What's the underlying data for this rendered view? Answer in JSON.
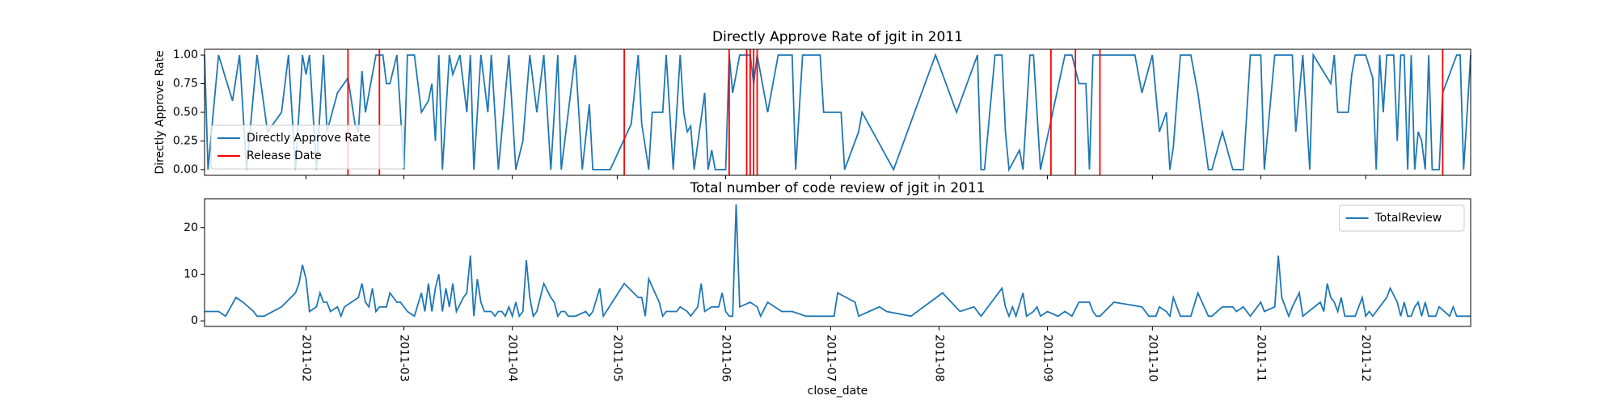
{
  "chart_data": [
    {
      "type": "line",
      "title": "Directly Approve Rate of jgit in 2011",
      "ylabel": "Directly Approve Rate",
      "x": [
        2,
        3,
        6,
        10,
        12,
        14,
        17,
        20,
        24,
        26,
        28,
        30,
        31,
        32,
        34,
        36,
        37,
        40,
        43,
        45,
        46,
        47,
        48,
        51,
        53,
        54,
        55,
        57,
        59,
        60,
        62,
        64,
        66,
        67,
        68,
        69,
        70,
        72,
        73,
        75,
        77,
        78,
        79,
        81,
        83,
        84,
        86,
        89,
        91,
        93,
        95,
        97,
        99,
        101,
        103,
        104,
        107,
        108,
        110,
        112,
        113,
        118,
        124,
        126,
        127,
        129,
        130,
        133,
        134,
        136,
        138,
        139,
        140,
        141,
        142,
        145,
        146,
        147,
        148,
        151,
        152,
        153,
        155,
        158,
        159,
        160,
        163,
        166,
        170,
        171,
        173,
        178,
        179,
        184,
        185,
        189,
        190,
        199,
        211,
        217,
        223,
        224,
        225,
        228,
        230,
        231,
        232,
        235,
        236,
        238,
        239,
        241,
        248,
        250,
        252,
        254,
        255,
        256,
        261,
        268,
        270,
        273,
        275,
        277,
        278,
        279,
        281,
        284,
        286,
        289,
        290,
        293,
        296,
        299,
        301,
        304,
        305,
        307,
        308,
        313,
        314,
        316,
        318,
        319,
        324,
        325,
        326,
        327,
        329,
        330,
        331,
        334,
        336,
        337,
        338,
        339,
        340,
        342,
        343,
        344,
        345,
        346,
        347,
        348,
        349,
        350,
        351,
        352,
        353,
        355,
        356,
        360,
        361,
        362,
        364
      ],
      "series": [
        {
          "name": "Directly Approve Rate",
          "color": "#1f77b4",
          "values": [
            1,
            0,
            1,
            0.6,
            1,
            0,
            1,
            0.33,
            0.5,
            1,
            0,
            1,
            0.83,
            1,
            0,
            1,
            0.33,
            0.67,
            0.8,
            0.4,
            0.33,
            0.86,
            0.5,
            1,
            1,
            0.75,
            0.75,
            1,
            0,
            1,
            1,
            0.5,
            0.6,
            0.75,
            0.25,
            1,
            0,
            1,
            0.83,
            1,
            0.5,
            1,
            0,
            1,
            0.5,
            1,
            0,
            1,
            0,
            0.25,
            1,
            0.5,
            1,
            0,
            1,
            0,
            0.75,
            1,
            0,
            0.57,
            0,
            0,
            0.4,
            1,
            0.4,
            0,
            0.5,
            0.5,
            1,
            0,
            1,
            0.5,
            0.33,
            0.38,
            0,
            0.67,
            0,
            0.17,
            0,
            0,
            1,
            0.67,
            1,
            1,
            0.75,
            1,
            0.5,
            1,
            1,
            0,
            1,
            1,
            0.5,
            0.5,
            0,
            0.33,
            0.5,
            0,
            1,
            0.5,
            1,
            0,
            0,
            1,
            1,
            0.33,
            0,
            0.17,
            0,
            1,
            1,
            0,
            1,
            1,
            0.75,
            0.75,
            0,
            1,
            1,
            1,
            0.67,
            1,
            0.33,
            0.5,
            0,
            0.2,
            1,
            1,
            0.67,
            0,
            0,
            0.33,
            0,
            0,
            1,
            1,
            0,
            0.67,
            1,
            1,
            0.33,
            1,
            0,
            1,
            0.75,
            1,
            0.5,
            0.5,
            0.5,
            0.83,
            1,
            1,
            0.8,
            0,
            1,
            0.5,
            1,
            1,
            0.25,
            1,
            1,
            0,
            1,
            0,
            0.33,
            0.25,
            0,
            1,
            0,
            0,
            0.67,
            1,
            1,
            0,
            1
          ]
        }
      ],
      "vlines": {
        "name": "Release Date",
        "color": "#ff0000",
        "x": [
          43,
          52,
          122,
          152,
          157,
          158,
          159,
          160,
          244,
          251,
          258,
          356
        ]
      },
      "xlim": [
        2,
        364
      ],
      "ylim": [
        -0.05,
        1.05
      ],
      "yticks": [
        {
          "value": 0,
          "label": "0.00"
        },
        {
          "value": 0.25,
          "label": "0.25"
        },
        {
          "value": 0.5,
          "label": "0.50"
        },
        {
          "value": 0.75,
          "label": "0.75"
        },
        {
          "value": 1,
          "label": "1.00"
        }
      ],
      "legend": "lower left"
    },
    {
      "type": "line",
      "title": "Total number of code review of jgit in 2011",
      "xlabel": "close_date",
      "x": [
        2,
        6,
        8,
        11,
        13,
        16,
        17,
        19,
        24,
        28,
        29,
        30,
        31,
        32,
        34,
        35,
        36,
        37,
        38,
        40,
        41,
        42,
        44,
        46,
        47,
        48,
        49,
        50,
        51,
        52,
        54,
        55,
        57,
        58,
        60,
        62,
        64,
        65,
        66,
        67,
        68,
        69,
        70,
        71,
        72,
        73,
        74,
        76,
        77,
        78,
        79,
        80,
        81,
        82,
        84,
        85,
        86,
        87,
        88,
        89,
        90,
        91,
        92,
        93,
        94,
        95,
        96,
        97,
        99,
        101,
        102,
        103,
        104,
        105,
        106,
        108,
        111,
        112,
        113,
        115,
        116,
        122,
        126,
        127,
        128,
        129,
        132,
        133,
        134,
        137,
        138,
        140,
        141,
        143,
        144,
        145,
        147,
        149,
        150,
        151,
        152,
        153,
        154,
        155,
        158,
        160,
        161,
        163,
        167,
        170,
        174,
        182,
        183,
        188,
        189,
        192,
        195,
        197,
        204,
        213,
        218,
        222,
        224,
        228,
        230,
        231,
        232,
        233,
        234,
        236,
        237,
        239,
        240,
        241,
        243,
        246,
        248,
        250,
        252,
        255,
        256,
        257,
        258,
        262,
        270,
        272,
        274,
        275,
        277,
        278,
        279,
        281,
        284,
        286,
        289,
        290,
        293,
        296,
        297,
        299,
        301,
        304,
        305,
        308,
        309,
        310,
        311,
        312,
        313,
        315,
        316,
        321,
        322,
        323,
        324,
        325,
        326,
        327,
        328,
        331,
        333,
        334,
        335,
        336,
        338,
        340,
        341,
        343,
        344,
        345,
        346,
        347,
        348,
        349,
        350,
        351,
        352,
        354,
        355,
        358,
        359,
        360,
        362,
        364
      ],
      "series": [
        {
          "name": "TotalReview",
          "color": "#1f77b4",
          "values": [
            2,
            2,
            1,
            5,
            4,
            2,
            1,
            1,
            3,
            6,
            8,
            12,
            9,
            2,
            3,
            6,
            4,
            4,
            2,
            3,
            1,
            3,
            4,
            5,
            8,
            4,
            3,
            7,
            2,
            3,
            3,
            6,
            4,
            4,
            2,
            1,
            6,
            2,
            8,
            2,
            7,
            10,
            2,
            7,
            3,
            8,
            2,
            5,
            6,
            14,
            1,
            9,
            4,
            2,
            2,
            1,
            2,
            2,
            1,
            3,
            1,
            4,
            1,
            2,
            13,
            5,
            1,
            2,
            8,
            5,
            4,
            1,
            2,
            2,
            1,
            1,
            2,
            1,
            2,
            7,
            1,
            8,
            5,
            5,
            1,
            9,
            4,
            1,
            2,
            2,
            3,
            2,
            1,
            3,
            8,
            2,
            3,
            3,
            6,
            2,
            1,
            1,
            25,
            3,
            4,
            3,
            1,
            4,
            2,
            2,
            1,
            1,
            6,
            4,
            1,
            2,
            3,
            2,
            1,
            6,
            2,
            3,
            1,
            5,
            7,
            3,
            1,
            3,
            1,
            6,
            1,
            2,
            3,
            1,
            2,
            1,
            2,
            1,
            4,
            4,
            2,
            1,
            1,
            4,
            3,
            1,
            1,
            3,
            2,
            1,
            5,
            1,
            1,
            6,
            1,
            1,
            3,
            3,
            2,
            3,
            1,
            4,
            2,
            3,
            14,
            5,
            3,
            1,
            3,
            6,
            1,
            4,
            2,
            8,
            5,
            4,
            2,
            5,
            1,
            1,
            5,
            1,
            2,
            1,
            3,
            5,
            7,
            4,
            1,
            4,
            1,
            1,
            3,
            4,
            1,
            4,
            1,
            1,
            3,
            1,
            3,
            1,
            1,
            1
          ]
        }
      ],
      "xlim": [
        2,
        364
      ],
      "ylim": [
        -1.2,
        26.2
      ],
      "yticks": [
        0,
        10,
        20
      ],
      "xticks": [
        {
          "value": 31,
          "label": "2011-02"
        },
        {
          "value": 59,
          "label": "2011-03"
        },
        {
          "value": 90,
          "label": "2011-04"
        },
        {
          "value": 120,
          "label": "2011-05"
        },
        {
          "value": 151,
          "label": "2011-06"
        },
        {
          "value": 181,
          "label": "2011-07"
        },
        {
          "value": 212,
          "label": "2011-08"
        },
        {
          "value": 243,
          "label": "2011-09"
        },
        {
          "value": 273,
          "label": "2011-10"
        },
        {
          "value": 304,
          "label": "2011-11"
        },
        {
          "value": 334,
          "label": "2011-12"
        }
      ],
      "legend": "upper right"
    }
  ]
}
